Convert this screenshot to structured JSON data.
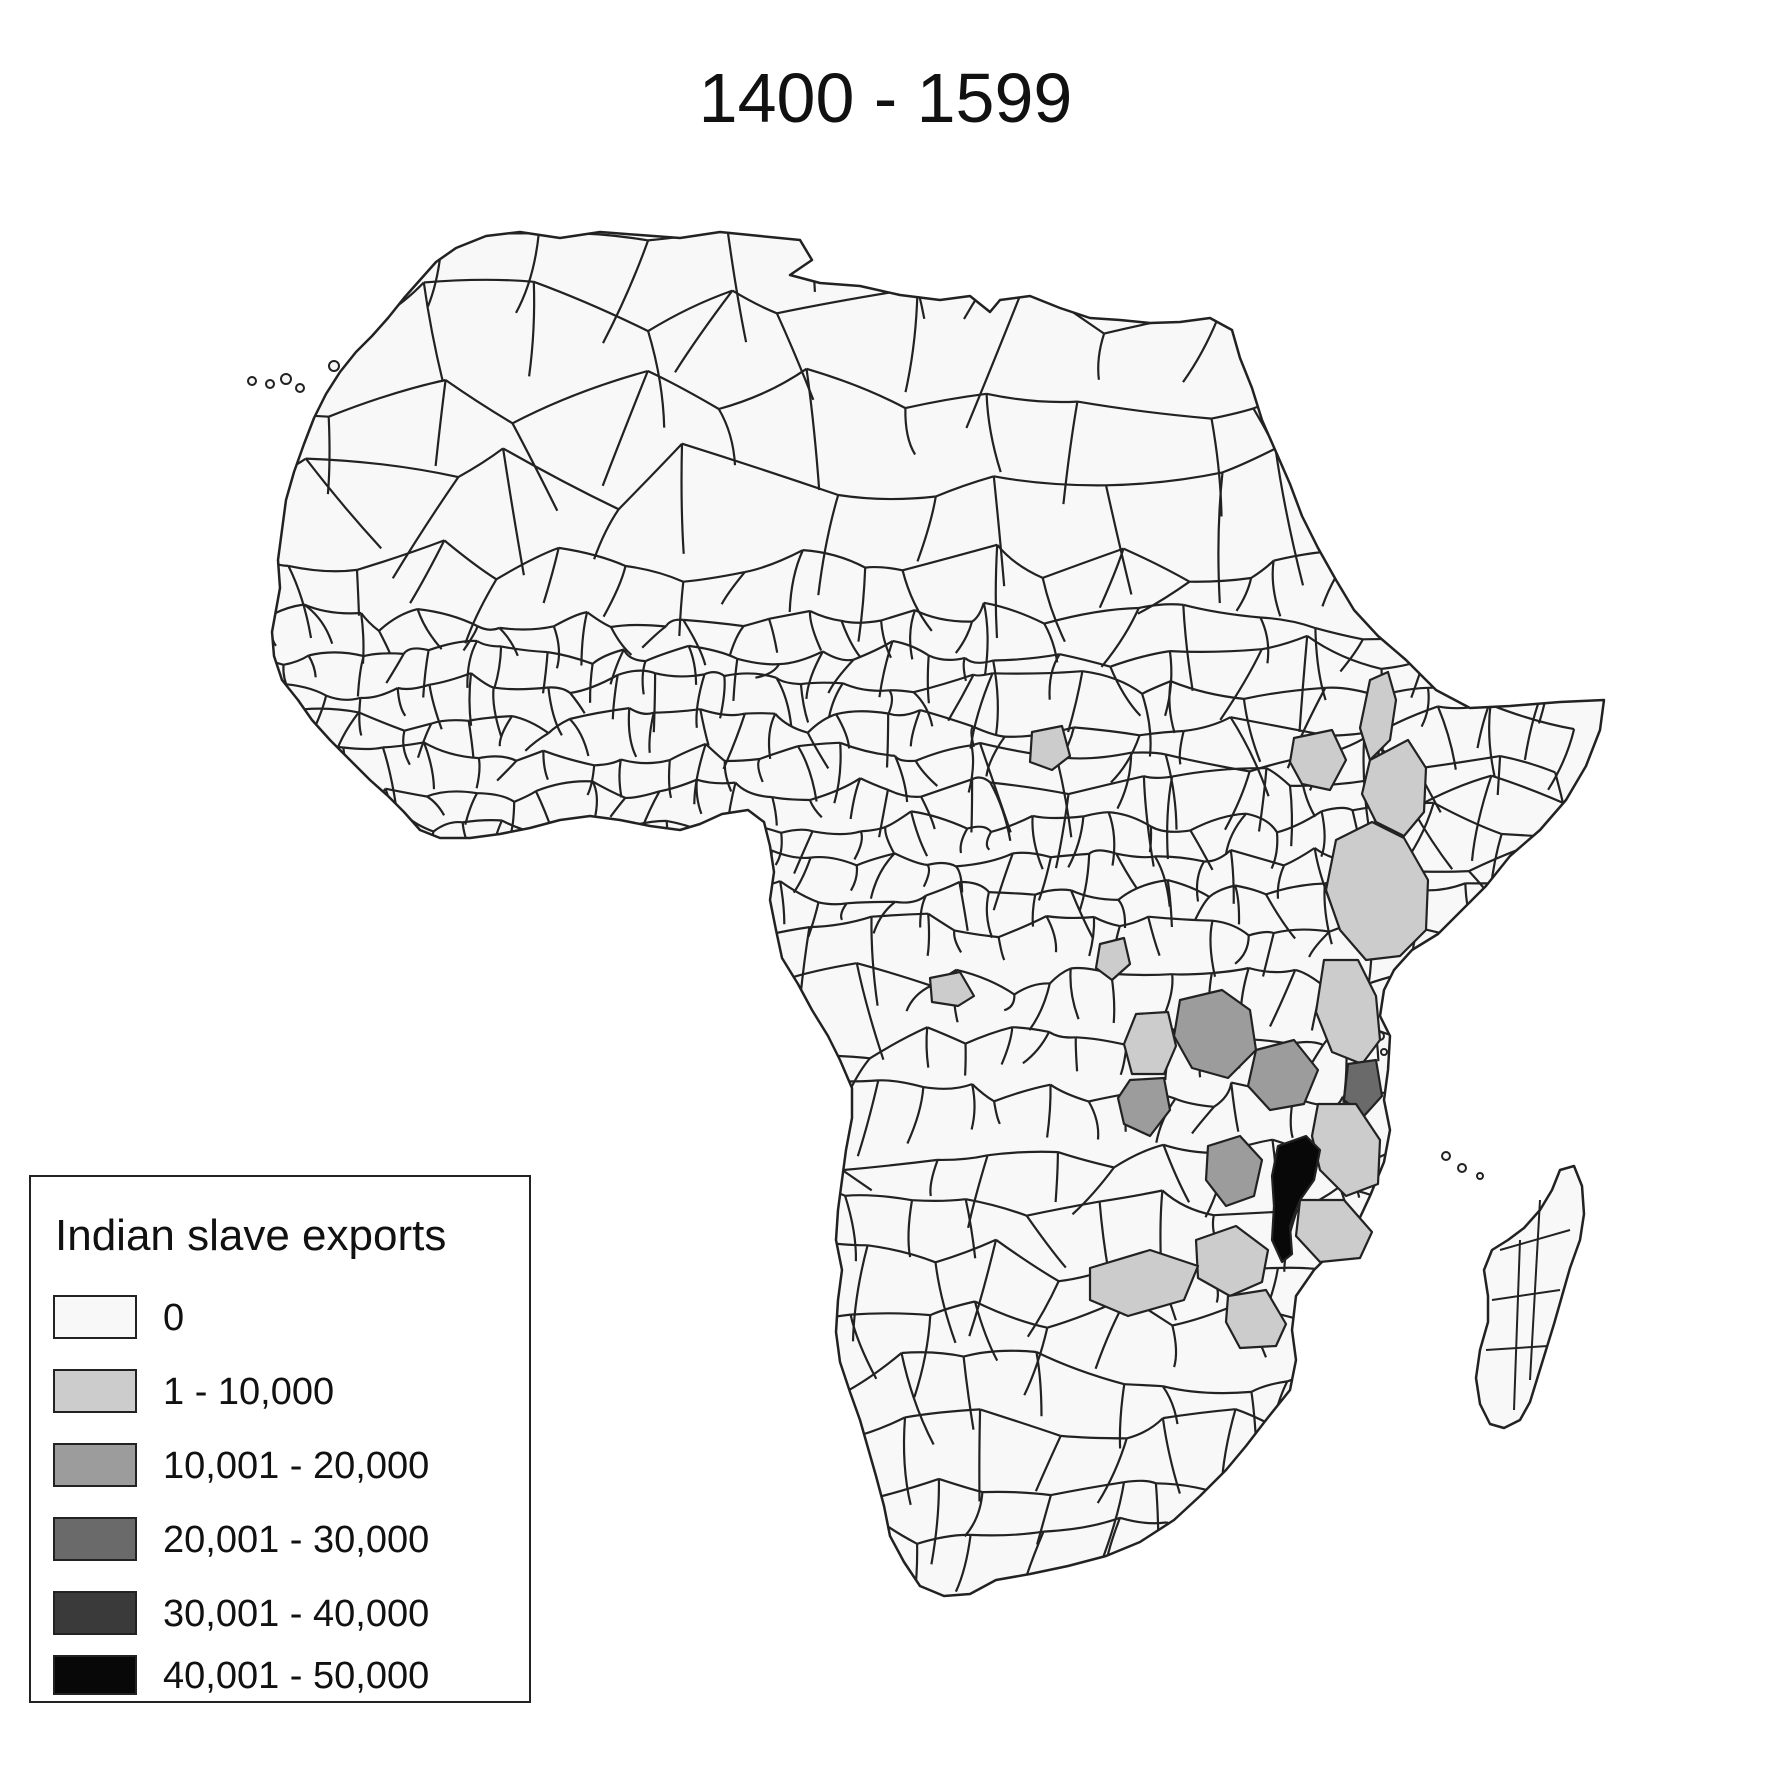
{
  "title": "1400 - 1599",
  "legend": {
    "title": "Indian slave exports",
    "items": [
      {
        "label": "0",
        "color": "#f8f8f8"
      },
      {
        "label": "1 - 10,000",
        "color": "#cccccc"
      },
      {
        "label": "10,001 - 20,000",
        "color": "#9c9c9c"
      },
      {
        "label": "20,001 - 30,000",
        "color": "#6a6a6a"
      },
      {
        "label": "30,001 - 40,000",
        "color": "#3a3a3a"
      },
      {
        "label": "40,001 - 50,000",
        "color": "#080808"
      }
    ]
  },
  "map": {
    "subject": "Africa ethnic homelands choropleth",
    "border_color": "#222222",
    "shaded_regions": [
      {
        "area": "ethiopian-highlands-east",
        "bin": 1
      },
      {
        "area": "ethiopian-rift",
        "bin": 1
      },
      {
        "area": "upper-nile-patch",
        "bin": 1
      },
      {
        "area": "great-lakes-west",
        "bin": 1
      },
      {
        "area": "kenya-coast-inland",
        "bin": 1
      },
      {
        "area": "zambezi-lower",
        "bin": 1
      },
      {
        "area": "mozambique-south",
        "bin": 1
      },
      {
        "area": "congo-kasai-patch",
        "bin": 1
      },
      {
        "area": "tanzania-interior",
        "bin": 2
      },
      {
        "area": "lake-malawi-west",
        "bin": 2
      },
      {
        "area": "tanzania-central",
        "bin": 3
      },
      {
        "area": "tanzania-coast",
        "bin": 3
      },
      {
        "area": "lake-malawi-coast",
        "bin": 5
      }
    ]
  }
}
